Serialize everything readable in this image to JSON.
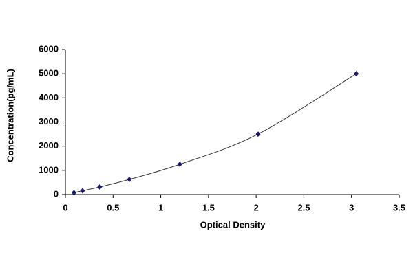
{
  "chart_data": {
    "type": "scatter",
    "x_label": "Optical Density",
    "y_label": "Concentration(pg/mL)",
    "series": [
      {
        "x": [
          0.09,
          0.18,
          0.36,
          0.67,
          1.2,
          2.02,
          3.05
        ],
        "values": [
          78,
          156,
          312,
          625,
          1250,
          2500,
          5000
        ],
        "color": "#1a1a6e"
      }
    ],
    "line": true,
    "line_color": "#333333",
    "xlim": [
      0,
      3.5
    ],
    "xticks": [
      0,
      0.5,
      1,
      1.5,
      2,
      2.5,
      3,
      3.5
    ],
    "ylim": [
      0,
      6000
    ],
    "yticks": [
      0,
      1000,
      2000,
      3000,
      4000,
      5000,
      6000
    ]
  }
}
